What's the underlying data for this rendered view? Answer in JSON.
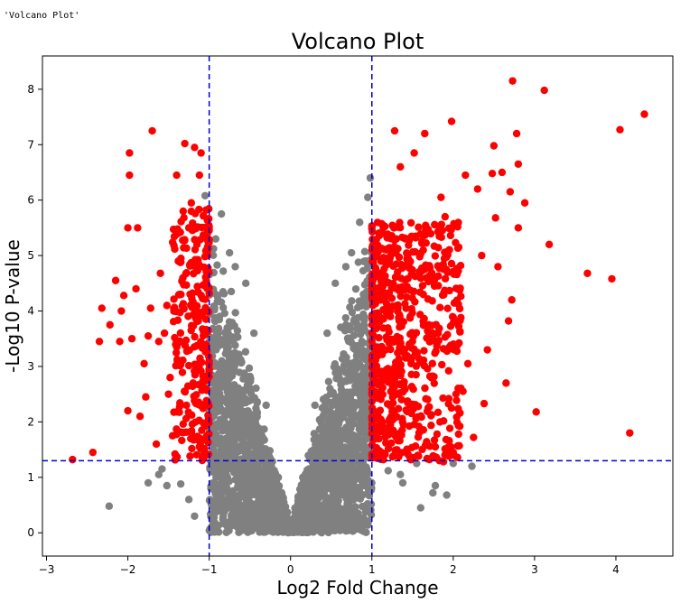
{
  "output_repr": "'Volcano Plot'",
  "chart_data": {
    "type": "scatter",
    "title": "Volcano Plot",
    "xlabel": "Log2 Fold Change",
    "ylabel": "-Log10 P-value",
    "xlim": [
      -3.05,
      4.7
    ],
    "ylim": [
      -0.42,
      8.6
    ],
    "xticks": [
      -3,
      -2,
      -1,
      0,
      1,
      2,
      3,
      4
    ],
    "yticks": [
      0,
      1,
      2,
      3,
      4,
      5,
      6,
      7,
      8
    ],
    "xtick_labels": [
      "−3",
      "−2",
      "−1",
      "0",
      "1",
      "2",
      "3",
      "4"
    ],
    "ytick_labels": [
      "0",
      "1",
      "2",
      "3",
      "4",
      "5",
      "6",
      "7",
      "8"
    ],
    "grid": false,
    "thresholds": {
      "log2fc": [
        -1,
        1
      ],
      "neg_log10_p": 1.3
    },
    "colors": {
      "significant": "#ff0000",
      "not_significant": "#808080",
      "threshold_line": "#0000cc"
    },
    "series": [
      {
        "color": "#ff0000",
        "points": [
          [
            4.35,
            7.55
          ],
          [
            3.12,
            7.98
          ],
          [
            2.73,
            8.15
          ],
          [
            4.05,
            7.27
          ],
          [
            3.65,
            4.68
          ],
          [
            3.95,
            4.58
          ],
          [
            4.17,
            1.8
          ],
          [
            3.18,
            5.2
          ],
          [
            3.02,
            2.18
          ],
          [
            2.78,
            7.2
          ],
          [
            2.8,
            6.65
          ],
          [
            2.7,
            6.15
          ],
          [
            2.72,
            4.2
          ],
          [
            2.68,
            3.82
          ],
          [
            2.65,
            2.7
          ],
          [
            2.5,
            6.98
          ],
          [
            2.48,
            6.48
          ],
          [
            2.52,
            5.68
          ],
          [
            2.55,
            4.8
          ],
          [
            2.42,
            3.3
          ],
          [
            2.38,
            2.33
          ],
          [
            2.25,
            1.72
          ],
          [
            2.3,
            6.2
          ],
          [
            2.35,
            5.0
          ],
          [
            2.15,
            6.45
          ],
          [
            1.98,
            7.42
          ],
          [
            1.65,
            7.2
          ],
          [
            1.28,
            7.25
          ],
          [
            1.52,
            6.85
          ],
          [
            1.35,
            6.6
          ],
          [
            1.85,
            6.05
          ],
          [
            1.9,
            5.7
          ],
          [
            2.05,
            4.4
          ],
          [
            2.18,
            3.05
          ],
          [
            2.12,
            2.55
          ],
          [
            2.0,
            1.45
          ],
          [
            1.88,
            1.28
          ],
          [
            1.78,
            1.55
          ],
          [
            1.95,
            1.38
          ],
          [
            2.6,
            6.5
          ],
          [
            2.8,
            5.5
          ],
          [
            2.88,
            5.95
          ],
          [
            -2.68,
            1.32
          ],
          [
            -2.43,
            1.45
          ],
          [
            -2.35,
            3.45
          ],
          [
            -2.32,
            4.05
          ],
          [
            -2.1,
            3.45
          ],
          [
            -2.08,
            4.0
          ],
          [
            -2.05,
            4.28
          ],
          [
            -2.0,
            2.2
          ],
          [
            -2.0,
            5.5
          ],
          [
            -1.98,
            6.85
          ],
          [
            -1.98,
            6.45
          ],
          [
            -1.88,
            5.5
          ],
          [
            -1.8,
            3.05
          ],
          [
            -1.85,
            2.1
          ],
          [
            -1.78,
            2.45
          ],
          [
            -1.7,
            7.25
          ],
          [
            -1.6,
            4.68
          ],
          [
            -1.55,
            3.6
          ],
          [
            -1.48,
            2.8
          ],
          [
            -1.45,
            1.75
          ],
          [
            -1.4,
            6.45
          ],
          [
            -1.3,
            7.02
          ],
          [
            -1.18,
            6.95
          ],
          [
            -1.1,
            6.85
          ],
          [
            -1.12,
            6.45
          ],
          [
            -1.22,
            5.95
          ],
          [
            -1.32,
            5.8
          ],
          [
            -1.25,
            5.5
          ],
          [
            -1.15,
            5.2
          ],
          [
            -1.38,
            4.9
          ],
          [
            -1.52,
            4.1
          ],
          [
            -1.62,
            3.45
          ],
          [
            -1.75,
            3.55
          ],
          [
            -1.35,
            3.1
          ],
          [
            -1.2,
            2.65
          ],
          [
            -1.28,
            2.3
          ],
          [
            -1.12,
            1.55
          ],
          [
            -1.22,
            1.8
          ],
          [
            -1.08,
            1.35
          ],
          [
            -1.42,
            1.42
          ],
          [
            -1.5,
            2.5
          ],
          [
            -1.65,
            1.6
          ],
          [
            -1.9,
            4.4
          ],
          [
            -2.15,
            4.55
          ],
          [
            -2.22,
            3.75
          ],
          [
            -1.95,
            3.5
          ],
          [
            -1.72,
            4.05
          ]
        ]
      },
      {
        "color": "#808080",
        "points": [
          [
            -2.23,
            0.48
          ],
          [
            -1.75,
            0.9
          ],
          [
            -1.58,
            1.15
          ],
          [
            -1.52,
            0.85
          ],
          [
            -1.62,
            1.05
          ],
          [
            -1.35,
            0.88
          ],
          [
            -1.25,
            0.6
          ],
          [
            -1.18,
            0.3
          ],
          [
            -1.05,
            6.08
          ],
          [
            -0.85,
            5.75
          ],
          [
            -0.92,
            5.3
          ],
          [
            -0.75,
            5.05
          ],
          [
            -0.68,
            4.8
          ],
          [
            -0.55,
            4.5
          ],
          [
            -0.45,
            3.6
          ],
          [
            -0.3,
            2.3
          ],
          [
            -0.15,
            1.0
          ],
          [
            0.15,
            1.0
          ],
          [
            0.3,
            2.3
          ],
          [
            0.45,
            3.6
          ],
          [
            0.55,
            4.5
          ],
          [
            0.68,
            4.8
          ],
          [
            0.75,
            5.05
          ],
          [
            0.85,
            5.6
          ],
          [
            0.95,
            6.05
          ],
          [
            0.98,
            6.4
          ],
          [
            1.2,
            1.12
          ],
          [
            1.35,
            1.05
          ],
          [
            1.6,
            0.45
          ],
          [
            1.55,
            1.25
          ],
          [
            1.78,
            0.85
          ],
          [
            1.75,
            0.72
          ],
          [
            1.92,
            0.68
          ],
          [
            2.0,
            1.25
          ],
          [
            2.23,
            1.2
          ],
          [
            1.38,
            0.9
          ]
        ]
      }
    ]
  }
}
